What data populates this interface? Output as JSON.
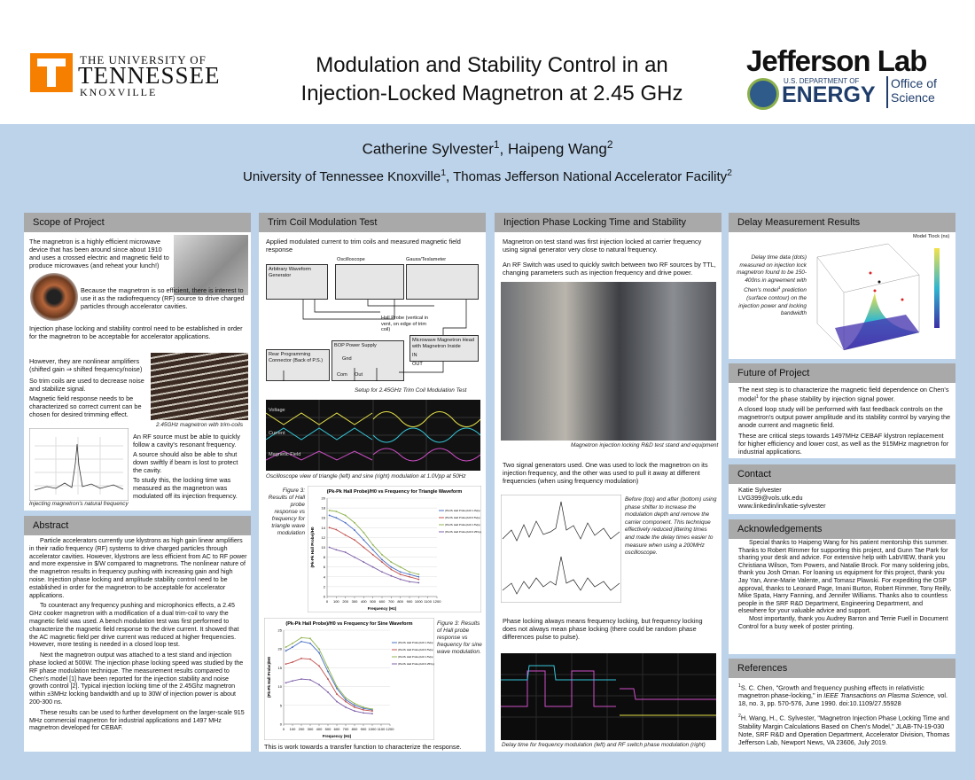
{
  "header": {
    "ut": [
      "THE UNIVERSITY OF",
      "TENNESSEE",
      "KNOXVILLE"
    ],
    "title": [
      "Modulation and Stability Control in an",
      "Injection-Locked Magnetron at 2.45 GHz"
    ],
    "jlab": [
      "Jefferson Lab",
      "U.S. DEPARTMENT OF",
      "ENERGY",
      "Office of",
      "Science"
    ]
  },
  "authors": [
    {
      "name": "Catherine Sylvester",
      "sup": "1"
    },
    {
      "name": ", Haipeng Wang",
      "sup": "2"
    }
  ],
  "affiliations": [
    {
      "name": "University of Tennessee Knoxville",
      "sup": "1"
    },
    {
      "name": ", Thomas Jefferson National Accelerator Facility",
      "sup": "2"
    }
  ],
  "scope": {
    "heading": "Scope of Project",
    "paragraphs": [
      "The magnetron is a highly efficient microwave device that has been around since about 1910 and uses a crossed electric and magnetic field to produce microwaves (and reheat your lunch!)",
      "Because the magnetron is so efficient, there is interest to use it as the radiofrequency (RF) source to drive charged particles through accelerator cavities.",
      "Injection phase locking and stability control need to be established in order for the magnetron to be acceptable for accelerator applications.",
      "However, they are nonlinear amplifiers (shifted gain ⇒ shifted frequency/noise)",
      "So trim coils are used to decrease noise and stabilize signal.",
      "Magnetic field response needs to be characterized so correct current can be chosen for desired trimming effect.",
      "An RF source must be able to quickly follow a cavity's resonant frequency.",
      "A source should also be able to shut down swiftly if beam is lost to protect the cavity.",
      "To study this, the locking time was measured as the magnetron was modulated off its injection frequency."
    ],
    "captions": [
      "2.45GHz magnetron with trim-coils",
      "Injecting magnetron's natural frequency"
    ]
  },
  "abstract": {
    "heading": "Abstract",
    "paragraphs": [
      "Particle accelerators currently use klystrons as high gain linear amplifiers in their radio frequency (RF) systems to drive charged particles through accelerator cavities.  However, klystrons are less efficient from AC to RF power and more expensive in $/W compared to magnetrons. The nonlinear nature of the magnetron results in frequency pushing with increasing gain and high noise. Injection phase locking and amplitude stability control need to be established in order for the magnetron to be acceptable for accelerator applications.",
      "To counteract any frequency pushing and microphonics effects, a 2.45 GHz cooker magnetron with a modification of a dual trim-coil to vary the magnetic field was used. A bench modulation test was first performed to characterize the magnetic field response to the drive current. It showed that the AC magnetic field per drive current was reduced at higher frequencies. However, more testing is needed in a closed loop test.",
      "Next the magnetron output was attached to a test stand and injection phase locked at 500W. The injection phase locking speed was studied by the RF phase modulation technique. The measurement results compared to Chen's model [1] have been reported for the injection stability and noise growth control [2]. Typical injection locking time of the 2.45Ghz magnetron within ±3MHz locking bandwidth and up to 30W of injection power is about 200-300 ns.",
      "These results can be used to further development on the larger-scale 915 MHz commercial magnetron for industrial applications and 1497 MHz magnetron developed for CEBAF."
    ]
  },
  "trim": {
    "heading": "Trim Coil Modulation Test",
    "intro": "Applied modulated current to trim coils and measured magnetic field response",
    "diagram": {
      "awg": "Arbitrary Waveform Generator",
      "sync": "Sync",
      "output": "Output",
      "osc": "Oscilloscope",
      "osc_channels": [
        "Channel 1",
        "Channel 2",
        "Channel 3",
        "Channel 4"
      ],
      "gauss": "Gauss/Teslameter",
      "probes": [
        "Probe 1",
        "Probe 2",
        "Probe 3",
        "Channel 1"
      ],
      "hall": "Hall Probe (vertical in vent, on edge of trim coil)",
      "head": "Microwave Magnetron Head with Magnetron Inside",
      "in": "IN",
      "out": "OUT",
      "rear": "Rear Programming Connector (Back of P.S.)",
      "rear_pins": [
        "Voltage",
        "Current",
        "Common"
      ],
      "bop": "BOP Power Supply",
      "gnd": "Gnd",
      "com": "Com",
      "outp": "Out",
      "prog": "Current Programming"
    },
    "setup_caption": "Setup for 2.45GHz Trim Coil Modulation Test",
    "scope_labels": [
      "Voltage",
      "Current",
      "Magnetic Field"
    ],
    "scope_caption": "Oscilloscope view of triangle (left) and sine (right) modulation at 1.0Vpp at 50Hz",
    "fig_tri": "Figure 3: Results of Hall probe response vs frequency for triangle wave modulation",
    "fig_sine": "Figure 3: Results of Hall probe response vs frequency for sine wave modulation.",
    "closing": "This is work towards a transfer function to characterize the response."
  },
  "figures": [
    {
      "type": "line",
      "title": "(Pk-Pk Hall Probe)/H0 vs Frequency for Triangle Waveform",
      "x_label": "Frequency (Hz)",
      "y_label": "(Pk-Pk Hall Probe)/H0",
      "x": [
        25,
        100,
        200,
        300,
        400,
        500,
        600,
        700,
        800,
        900,
        1000
      ],
      "xlim": [
        0,
        1200
      ],
      "xticks": [
        0,
        100,
        200,
        300,
        400,
        500,
        600,
        700,
        800,
        900,
        1000,
        1100,
        1200
      ],
      "ylim": [
        0,
        20
      ],
      "yticks": [
        0,
        2,
        4,
        6,
        8,
        10,
        12,
        14,
        16,
        18,
        20
      ],
      "grid": true,
      "series": [
        {
          "name": "(Pk-Pk Hall Probe)/H0 1.0Vpp",
          "color": "#4a6fc4",
          "values": [
            16.5,
            16,
            15,
            13.5,
            11.5,
            9.5,
            7.5,
            6,
            5,
            4.5,
            4
          ]
        },
        {
          "name": "(Pk-Pk Hall Probe)/H0 0.5Vpp",
          "color": "#c0504d",
          "values": [
            14,
            13.6,
            12.5,
            11.5,
            10,
            8.5,
            7,
            5.5,
            4.5,
            4,
            3.5
          ]
        },
        {
          "name": "(Pk-Pk Hall Probe)/H0 1.5Vpp",
          "color": "#8fb34f",
          "values": [
            17.5,
            17.3,
            16.5,
            15,
            13,
            10.5,
            8.5,
            7,
            6,
            5,
            4.5
          ]
        },
        {
          "name": "(Pk-Pk Hall Probe)/H0 0.25Vpp",
          "color": "#7d5fa8",
          "values": [
            10,
            9.5,
            9,
            8,
            7,
            6,
            5,
            4.2,
            3.5,
            3,
            2.8
          ]
        }
      ]
    },
    {
      "type": "line",
      "title": "(Pk-Pk Hall Probe)/H0 vs Frequency for Sine Waveform",
      "x_label": "Frequency (Hz)",
      "y_label": "(Pk-Pk Hall Probe)/H0",
      "x": [
        25,
        100,
        200,
        300,
        400,
        500,
        600,
        700,
        800,
        900,
        1000
      ],
      "xlim": [
        0,
        1200
      ],
      "xticks": [
        0,
        100,
        200,
        300,
        400,
        500,
        600,
        700,
        800,
        900,
        1000,
        1100,
        1200
      ],
      "ylim": [
        0,
        25
      ],
      "yticks": [
        0,
        5,
        10,
        15,
        20,
        25
      ],
      "grid": true,
      "series": [
        {
          "name": "(Pk-Pk Hall Probe)/H0 1.0Vpp",
          "color": "#4a6fc4",
          "values": [
            19.5,
            20.5,
            22,
            21.5,
            19,
            14,
            9.5,
            6.5,
            5,
            4.2,
            3.8
          ]
        },
        {
          "name": "(Pk-Pk Hall Probe)/H0 0.5Vpp",
          "color": "#c0504d",
          "values": [
            16,
            16.5,
            17.5,
            17.3,
            15.5,
            12,
            8,
            6,
            4.5,
            3.8,
            3.5
          ]
        },
        {
          "name": "(Pk-Pk Hall Probe)/H0 1.5Vpp",
          "color": "#8fb34f",
          "values": [
            20.5,
            21.5,
            23,
            22.8,
            20,
            15,
            10,
            7,
            5.5,
            4.5,
            4
          ]
        },
        {
          "name": "(Pk-Pk Hall Probe)/H0 0.25Vpp",
          "color": "#7d5fa8",
          "values": [
            11,
            11.5,
            12,
            11.8,
            10.5,
            8.5,
            6,
            4.5,
            3.5,
            3,
            2.8
          ]
        }
      ]
    }
  ],
  "injection": {
    "heading": "Injection Phase Locking Time and Stability",
    "paragraphs": [
      "Magnetron on test stand was first injection locked at carrier frequency using signal generator very close to natural frequency.",
      "An RF Switch was used to quickly switch between two RF sources by TTL, changing parameters such as injection frequency and drive power.",
      "Two signal generators used. One was used to lock the magnetron on its injection frequency, and the other was used to pull it away at different frequencies (when using frequency modulation)",
      "Phase locking always means frequency locking, but frequency locking does not always mean phase locking (there could be random phase differences pulse to pulse)."
    ],
    "stand_caption": "Magnetron injection locking R&D test stand and equipment",
    "side": "Before (top) and after (bottom) using phase shifter to increase the modulation depth and remove the carrier component. This technique effectively reduced jittering times and made the delay times easier to measure when using a 200MHz oscilloscope.",
    "delay_caption": "Delay time for frequency modulation (left) and RF switch phase modulation (right)"
  },
  "delay": {
    "heading": "Delay Measurement Results",
    "side": [
      "Delay time data (dots) measured on injection lock magnetron found to be 150-400ns in agreement with Chen's model",
      "1",
      " prediction (surface contour) on the injection power and locking bandwidth"
    ],
    "plot_label": "Model Tlock (ns)"
  },
  "future": {
    "heading": "Future of Project",
    "paragraphs": [
      [
        "The next step is to characterize the magnetic field dependence on Chen's model",
        "1",
        " for the phase stability by injection signal power."
      ],
      [
        "A closed loop study will be performed with fast feedback controls on the magnetron's output power amplitude and its stability control by varying the anode current and magnetic field."
      ],
      [
        "These are critical steps towards 1497MHz CEBAF klystron replacement for higher efficiency and lower cost, as well as the 915MHz magnetron for industrial applications."
      ]
    ]
  },
  "contact": {
    "heading": "Contact",
    "lines": [
      "Katie Sylvester",
      "LVG399@vols.utk.edu",
      "www.linkedin/in/katie-sylvester"
    ]
  },
  "acknowledgements": {
    "heading": "Acknowledgements",
    "paragraphs": [
      "Special thanks to Haipeng Wang for his patient mentorship this summer. Thanks to Robert Rimmer for supporting this project, and Gunn Tae Park for sharing your desk and advice. For extensive help with LabVIEW, thank you Christiana Wilson, Tom Powers, and Natalie Brock. For many soldering jobs, thank you Josh Oman. For loaning us equipment for this project, thank you Jay Yan, Anne-Marie Valente, and Tomasz Plawski. For expediting the OSP approval, thanks to Leonard Page, Imani Burton, Robert Rimmer, Tony Reilly, Mike Spata, Harry Fanning, and Jennifer Williams. Thanks also to countless people in the SRF R&D Department, Engineering Department, and elsewhere for your valuable advice and support.",
      "Most importantly, thank you Audrey Barron and Terrie Fuell in Document Control for a busy week of poster printing."
    ]
  },
  "references": {
    "heading": "References",
    "items": [
      [
        "1",
        "S. C. Chen, \"Growth and frequency pushing effects in relativistic magnetron phase-locking,\" in ",
        "IEEE Transactions on Plasma Science",
        ", vol. 18, no. 3, pp. 570-576, June 1990. doi:10.1109/27.55928"
      ],
      [
        "2",
        "H. Wang, H., C. Sylvester, \"Magnetron Injection Phase Locking Time and Stability Margin Calculations Based on Chen's Model,\" JLAB-TN-19-030 Note, SRF R&D and Operation Department, Accelerator Division, Thomas Jefferson Lab, Newport News, VA 23606, July 2019."
      ]
    ]
  }
}
